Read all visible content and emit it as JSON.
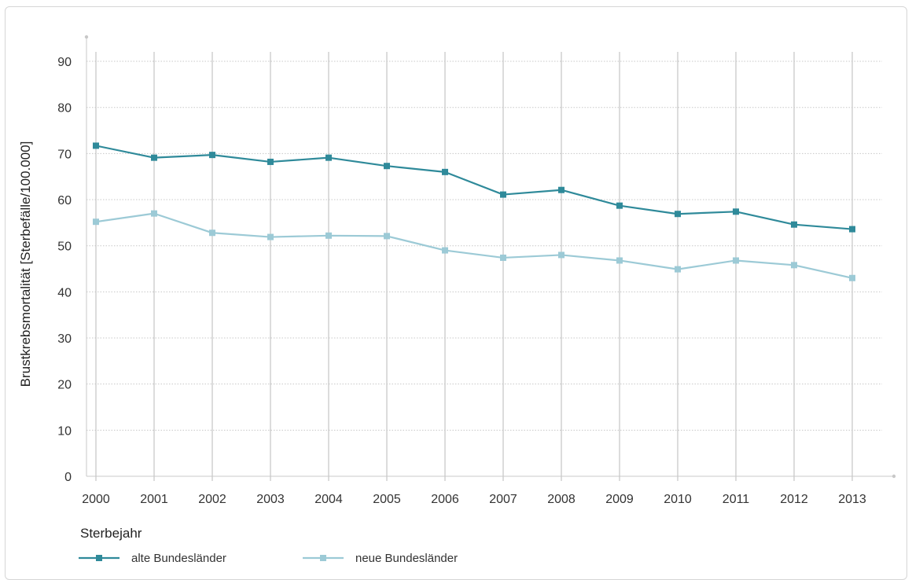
{
  "chart_data": {
    "type": "line",
    "title": "",
    "xlabel": "Sterbejahr",
    "ylabel": "Brustkrebsmortalität [Sterbefälle/100.000]",
    "categories": [
      "2000",
      "2001",
      "2002",
      "2003",
      "2004",
      "2005",
      "2006",
      "2007",
      "2008",
      "2009",
      "2010",
      "2011",
      "2012",
      "2013"
    ],
    "ylim": [
      0,
      90
    ],
    "yticks": [
      0,
      10,
      20,
      30,
      40,
      50,
      60,
      70,
      80,
      90
    ],
    "grid": true,
    "legend_position": "bottom-left",
    "series": [
      {
        "name": "alte Bundesländer",
        "color": "#2f8a9a",
        "marker": "square",
        "values": [
          71.7,
          69.1,
          69.7,
          68.2,
          69.1,
          67.3,
          66.0,
          61.1,
          62.1,
          58.7,
          56.9,
          57.4,
          54.6,
          53.6
        ]
      },
      {
        "name": "neue Bundesländer",
        "color": "#9ccad6",
        "marker": "square",
        "values": [
          55.2,
          57.0,
          52.8,
          51.9,
          52.2,
          52.1,
          49.0,
          47.4,
          48.0,
          46.8,
          44.9,
          46.8,
          45.8,
          43.0
        ]
      }
    ]
  }
}
